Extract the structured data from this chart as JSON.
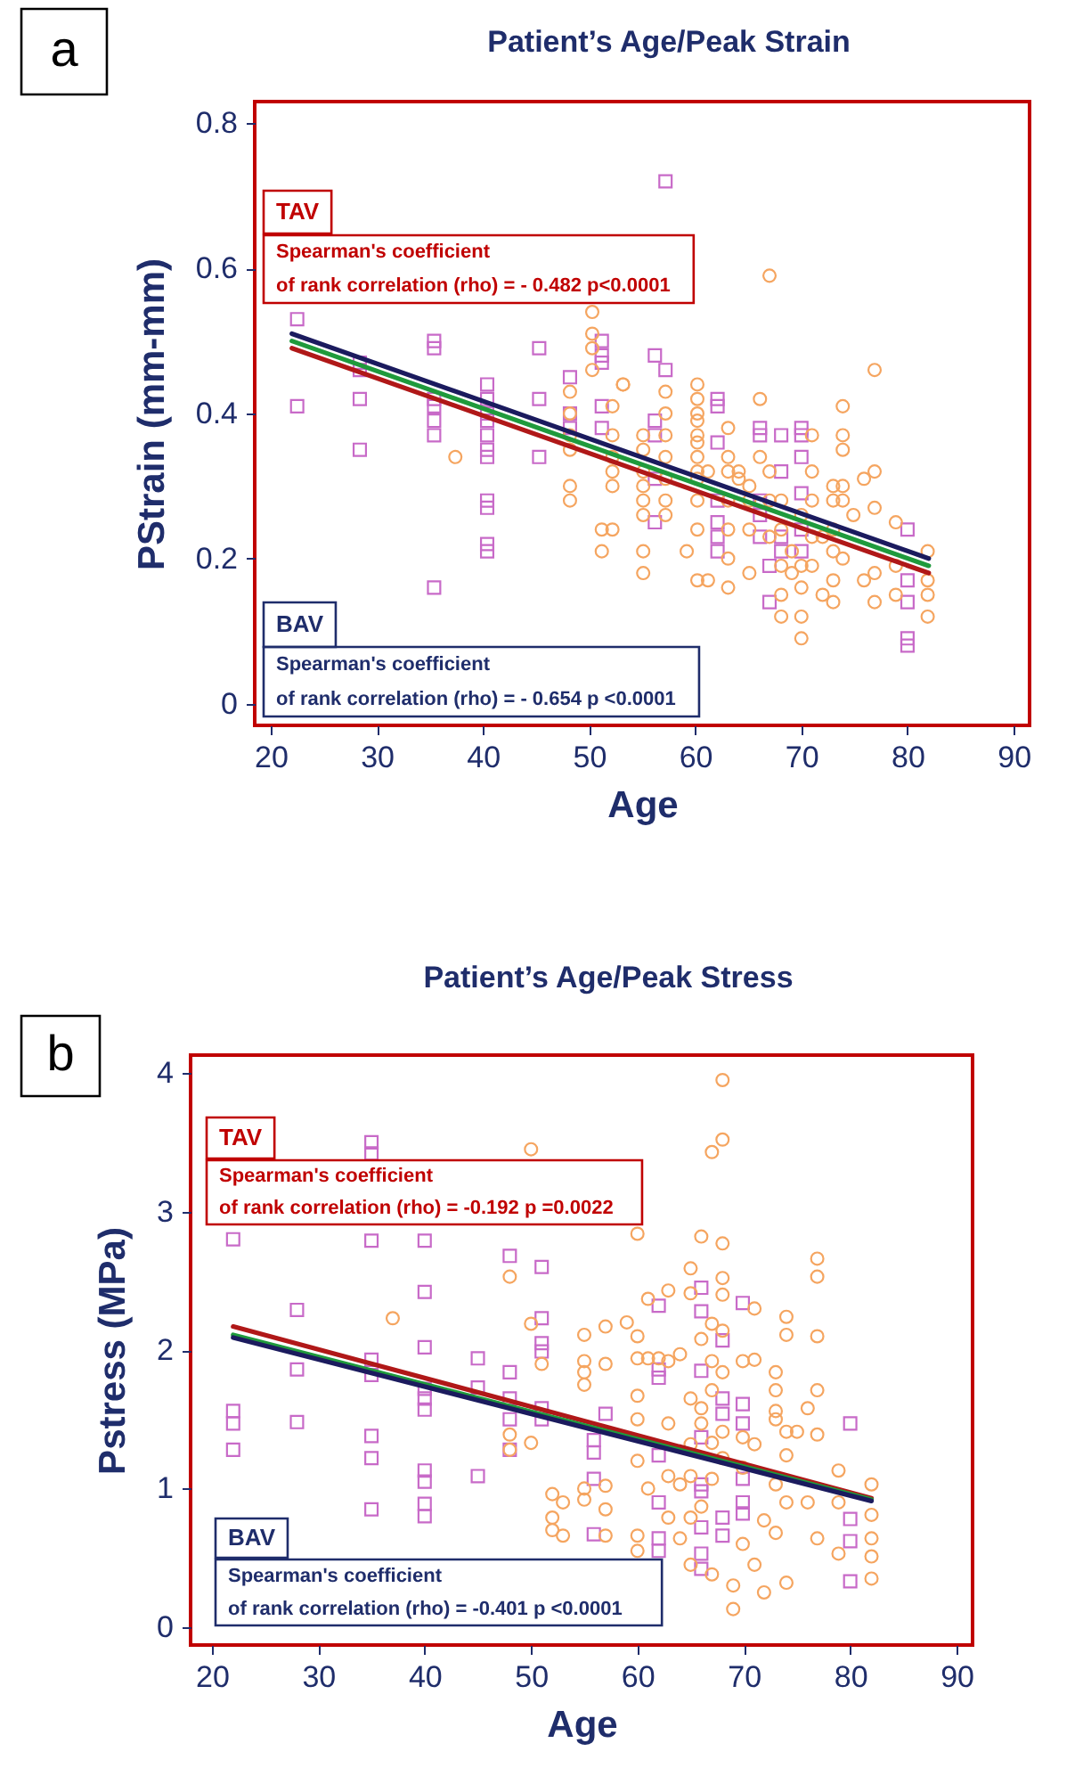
{
  "chart_data": [
    {
      "type": "scatter",
      "title": "Patient’s Age/Peak Strain",
      "xlabel": "Age",
      "ylabel": "PStrain (mm-mm)",
      "xlim": [
        18.5,
        91.5
      ],
      "ylim": [
        -0.03,
        0.83
      ],
      "xticks": [
        20,
        30,
        40,
        50,
        60,
        70,
        80,
        90
      ],
      "yticks": [
        0,
        0.2,
        0.4,
        0.6,
        0.8
      ],
      "grid": false,
      "annotations": [
        "a",
        "TAV",
        "Spearman's coefficient",
        "of rank correlation (rho)  = - 0.482  p<0.0001",
        "BAV",
        "Spearman's coefficient",
        "of rank correlation (rho) = - 0.654   p <0.0001"
      ],
      "series": [
        {
          "marker": "square",
          "color": "#c86ac8",
          "x": [
            22.5,
            22.5,
            28.4,
            28.4,
            28.4,
            28.4,
            35.4,
            35.4,
            35.4,
            35.4,
            35.4,
            35.4,
            35.4,
            40.4,
            40.4,
            40.4,
            40.4,
            40.4,
            40.4,
            40.4,
            40.4,
            40.4,
            40.4,
            40.4,
            45.3,
            45.3,
            45.3,
            48.2,
            48.2,
            48.2,
            51.2,
            51.2,
            51.2,
            51.2,
            51.2,
            56.2,
            57.2,
            57.2,
            56.2,
            56.2,
            56.2,
            56.2,
            62.1,
            62.1,
            62.1,
            62.1,
            62.1,
            62.1,
            62.1,
            66.1,
            66.1,
            66.1,
            66.1,
            66.1,
            67,
            67,
            68.1,
            68.1,
            68.1,
            68.1,
            70,
            70,
            70,
            70,
            70,
            70,
            80,
            80,
            80,
            80,
            80
          ],
          "values": [
            0.53,
            0.41,
            0.47,
            0.46,
            0.42,
            0.35,
            0.5,
            0.49,
            0.42,
            0.41,
            0.39,
            0.37,
            0.16,
            0.44,
            0.42,
            0.4,
            0.39,
            0.37,
            0.35,
            0.34,
            0.28,
            0.27,
            0.22,
            0.21,
            0.49,
            0.42,
            0.34,
            0.45,
            0.4,
            0.38,
            0.5,
            0.48,
            0.47,
            0.41,
            0.38,
            0.48,
            0.46,
            0.72,
            0.39,
            0.37,
            0.31,
            0.25,
            0.42,
            0.41,
            0.36,
            0.28,
            0.25,
            0.23,
            0.21,
            0.38,
            0.37,
            0.28,
            0.26,
            0.23,
            0.19,
            0.14,
            0.37,
            0.32,
            0.23,
            0.21,
            0.38,
            0.37,
            0.34,
            0.29,
            0.24,
            0.21,
            0.24,
            0.17,
            0.14,
            0.09,
            0.08
          ]
        },
        {
          "marker": "circle",
          "color": "#f5a560",
          "x": [
            37.4,
            50.3,
            50.3,
            50.3,
            50.3,
            53.2,
            53.2,
            52.2,
            52.2,
            52.2,
            52.2,
            52.2,
            51.2,
            51.2,
            52.2,
            48.2,
            48.2,
            48.2,
            48.2,
            48.2,
            48.2,
            55.1,
            55.1,
            55.1,
            55.1,
            55.1,
            55.1,
            55.1,
            55.1,
            57.2,
            57.2,
            57.2,
            57.2,
            57.2,
            57.2,
            57.2,
            59.2,
            60.2,
            60.2,
            60.2,
            60.2,
            60.2,
            60.2,
            60.2,
            60.2,
            60.2,
            60.2,
            60.2,
            60.2,
            61.2,
            61.2,
            63.1,
            63.1,
            63.1,
            63.1,
            63.1,
            63.1,
            63.1,
            64.1,
            64.1,
            65.1,
            65.1,
            65.1,
            65.1,
            66.1,
            66.1,
            67,
            67,
            67,
            67,
            68.1,
            68.1,
            68.1,
            68.1,
            68.1,
            69.1,
            69.1,
            70,
            70,
            70,
            70,
            70,
            71,
            71,
            71,
            71,
            71,
            72,
            72,
            73,
            73,
            73,
            73,
            73,
            73,
            73.9,
            73.9,
            73.9,
            73.9,
            73.9,
            73.9,
            74.9,
            75.9,
            75.9,
            76.9,
            76.9,
            76.9,
            76.9,
            76.9,
            78.9,
            78.9,
            78.9,
            81.9,
            81.9,
            81.9,
            81.9
          ],
          "values": [
            0.34,
            0.54,
            0.51,
            0.49,
            0.46,
            0.44,
            0.44,
            0.41,
            0.37,
            0.34,
            0.32,
            0.3,
            0.24,
            0.21,
            0.24,
            0.43,
            0.4,
            0.37,
            0.35,
            0.3,
            0.28,
            0.37,
            0.35,
            0.32,
            0.3,
            0.28,
            0.26,
            0.21,
            0.18,
            0.43,
            0.4,
            0.37,
            0.34,
            0.31,
            0.28,
            0.26,
            0.21,
            0.44,
            0.42,
            0.4,
            0.39,
            0.37,
            0.36,
            0.34,
            0.32,
            0.31,
            0.28,
            0.24,
            0.17,
            0.17,
            0.32,
            0.38,
            0.34,
            0.32,
            0.28,
            0.24,
            0.2,
            0.16,
            0.32,
            0.31,
            0.3,
            0.28,
            0.24,
            0.18,
            0.42,
            0.34,
            0.59,
            0.32,
            0.28,
            0.23,
            0.28,
            0.24,
            0.19,
            0.15,
            0.12,
            0.21,
            0.18,
            0.26,
            0.19,
            0.16,
            0.12,
            0.09,
            0.37,
            0.32,
            0.28,
            0.23,
            0.19,
            0.23,
            0.15,
            0.3,
            0.28,
            0.24,
            0.21,
            0.17,
            0.14,
            0.41,
            0.37,
            0.35,
            0.3,
            0.28,
            0.2,
            0.26,
            0.31,
            0.17,
            0.46,
            0.32,
            0.27,
            0.18,
            0.14,
            0.25,
            0.19,
            0.15,
            0.21,
            0.17,
            0.15,
            0.12
          ]
        },
        {
          "type": "line",
          "color": "#1b1b5e",
          "x": [
            22,
            82
          ],
          "values": [
            0.51,
            0.2
          ]
        },
        {
          "type": "line",
          "color": "#1f9a3c",
          "x": [
            22,
            82
          ],
          "values": [
            0.5,
            0.19
          ]
        },
        {
          "type": "line",
          "color": "#b01818",
          "x": [
            22,
            82
          ],
          "values": [
            0.49,
            0.18
          ]
        }
      ]
    },
    {
      "type": "scatter",
      "title": "Patient’s Age/Peak Stress",
      "xlabel": "Age",
      "ylabel": "Pstress (MPa)",
      "xlim": [
        18,
        91.5
      ],
      "ylim": [
        -0.13,
        4.13
      ],
      "xticks": [
        20,
        30,
        40,
        50,
        60,
        70,
        80,
        90
      ],
      "yticks": [
        0,
        1,
        2,
        3,
        4
      ],
      "grid": false,
      "annotations": [
        "b",
        "TAV",
        "Spearman's coefficient",
        "of rank correlation (rho)   = -0.192  p =0.0022",
        "BAV",
        "Spearman's coefficient",
        "of rank correlation (rho)   = -0.401    p <0.0001"
      ],
      "series": [
        {
          "marker": "square",
          "color": "#c86ac8",
          "x": [
            22,
            22,
            22,
            22,
            28,
            28,
            28,
            35,
            35,
            35,
            35,
            35,
            35,
            35,
            35,
            40,
            40,
            40,
            40,
            40,
            40,
            40,
            40,
            40,
            40,
            45,
            45,
            45,
            48,
            48,
            48,
            48,
            48,
            51,
            51,
            51,
            51,
            51,
            51,
            55.9,
            55.9,
            55.9,
            55.9,
            57,
            62,
            62,
            62,
            62,
            62,
            62,
            62,
            66,
            66,
            66,
            66,
            66,
            66,
            66,
            66,
            66,
            68,
            68,
            68,
            68,
            68,
            69.9,
            69.9,
            69.9,
            69.9,
            69.9,
            69.9,
            80,
            80,
            80,
            80
          ],
          "values": [
            2.8,
            1.56,
            1.47,
            1.28,
            2.29,
            1.86,
            1.48,
            3.5,
            3.42,
            2.79,
            1.93,
            1.82,
            1.38,
            1.22,
            0.85,
            2.79,
            2.42,
            2.02,
            1.72,
            1.65,
            1.57,
            1.13,
            1.05,
            0.89,
            0.8,
            1.94,
            1.73,
            1.09,
            2.68,
            1.84,
            1.65,
            1.5,
            1.28,
            2.6,
            2.23,
            2.05,
            1.99,
            1.58,
            1.5,
            1.35,
            1.26,
            1.07,
            0.67,
            1.54,
            2.32,
            1.86,
            1.8,
            1.24,
            0.9,
            0.64,
            0.55,
            2.45,
            2.28,
            1.85,
            1.37,
            1.03,
            0.98,
            0.72,
            0.53,
            0.42,
            2.07,
            1.65,
            1.54,
            0.79,
            0.66,
            2.34,
            1.61,
            1.47,
            1.07,
            0.9,
            0.82,
            1.47,
            0.78,
            0.62,
            0.33
          ]
        },
        {
          "marker": "circle",
          "color": "#f5a560",
          "x": [
            37,
            50,
            50,
            50,
            48,
            48,
            48,
            51,
            52,
            52,
            52,
            53,
            53,
            55,
            55,
            55,
            55,
            55,
            55,
            57,
            57,
            57,
            57,
            57,
            59,
            60,
            60,
            60,
            60,
            60,
            60,
            60,
            60,
            61,
            61,
            61,
            62,
            62.9,
            62.9,
            62.9,
            62.9,
            62.9,
            64,
            64,
            64,
            65,
            65,
            65,
            65,
            65,
            65,
            65,
            66,
            66,
            66,
            66,
            66,
            67,
            67,
            67,
            67,
            67,
            67,
            67,
            68,
            68,
            68,
            68,
            68,
            68,
            68,
            68,
            68,
            69,
            69,
            69.9,
            69.9,
            69.9,
            69.9,
            71,
            71,
            71,
            71,
            71.9,
            71.9,
            73,
            73,
            73,
            73,
            73,
            73,
            74,
            74,
            74,
            74,
            74,
            74,
            75,
            76,
            76,
            76.9,
            76.9,
            76.9,
            76.9,
            76.9,
            76.9,
            78.9,
            78.9,
            78.9,
            82,
            82,
            82,
            82,
            82
          ],
          "values": [
            2.23,
            3.45,
            2.19,
            1.33,
            2.53,
            1.39,
            1.28,
            1.9,
            0.96,
            0.79,
            0.7,
            0.9,
            0.66,
            2.11,
            1.92,
            1.84,
            1.75,
            1.0,
            0.92,
            2.17,
            1.9,
            1.02,
            0.85,
            0.66,
            2.2,
            2.84,
            2.1,
            1.94,
            1.67,
            1.5,
            1.2,
            0.66,
            0.55,
            2.37,
            1.94,
            1.0,
            1.94,
            2.43,
            1.92,
            1.47,
            1.09,
            0.79,
            1.97,
            1.03,
            0.64,
            2.59,
            2.41,
            1.65,
            1.32,
            1.09,
            0.79,
            0.45,
            2.82,
            2.08,
            1.58,
            1.47,
            0.87,
            3.43,
            2.19,
            1.92,
            1.71,
            1.33,
            1.07,
            0.38,
            3.95,
            3.52,
            2.77,
            2.52,
            2.4,
            2.14,
            1.84,
            1.41,
            1.22,
            0.3,
            0.13,
            1.92,
            1.37,
            1.15,
            0.6,
            2.3,
            1.93,
            1.32,
            0.45,
            0.77,
            0.25,
            1.84,
            1.71,
            1.56,
            1.5,
            1.03,
            0.68,
            2.24,
            2.11,
            1.41,
            1.24,
            0.9,
            0.32,
            1.41,
            1.58,
            0.9,
            2.66,
            2.53,
            2.1,
            1.71,
            1.39,
            0.64,
            1.13,
            0.9,
            0.53,
            1.03,
            0.81,
            0.64,
            0.51,
            0.35
          ]
        },
        {
          "type": "line",
          "color": "#b01818",
          "x": [
            22,
            82
          ],
          "values": [
            2.17,
            0.93
          ]
        },
        {
          "type": "line",
          "color": "#1f9a3c",
          "x": [
            22,
            82
          ],
          "values": [
            2.11,
            0.92
          ]
        },
        {
          "type": "line",
          "color": "#1b1b5e",
          "x": [
            22,
            82
          ],
          "values": [
            2.09,
            0.91
          ]
        }
      ]
    }
  ]
}
